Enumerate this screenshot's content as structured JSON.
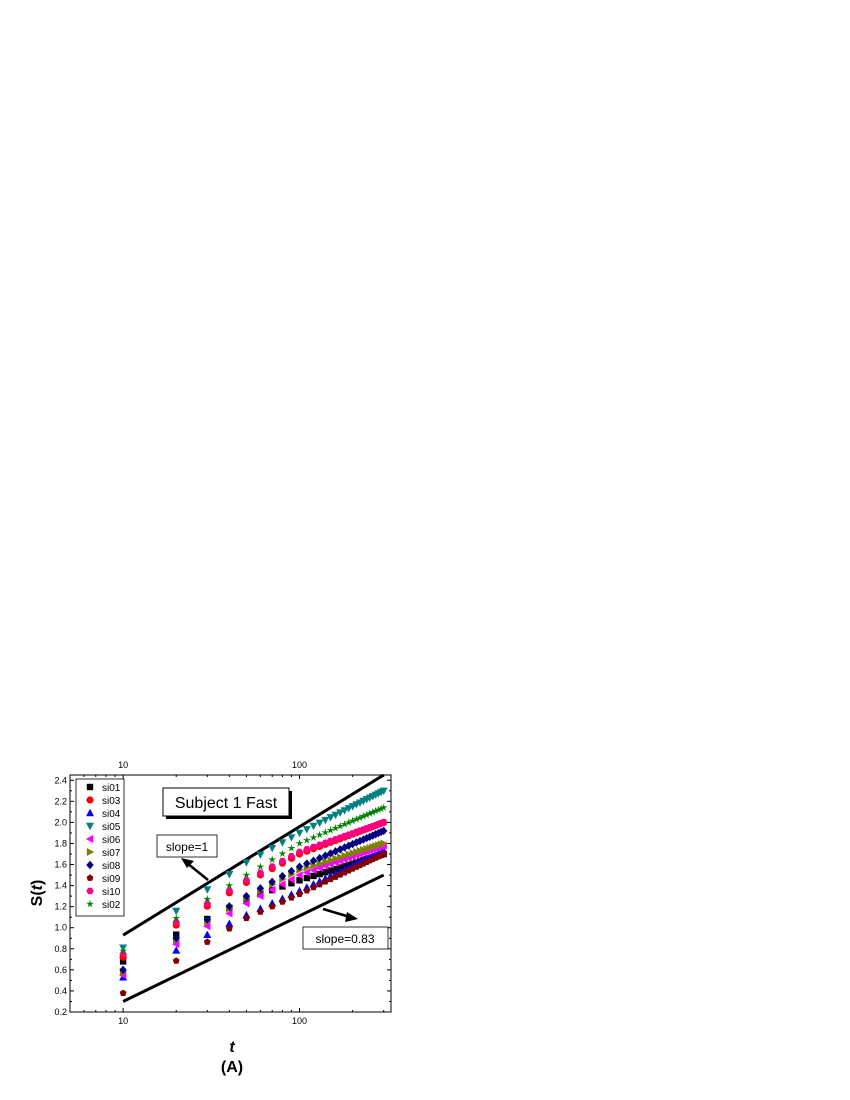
{
  "chart_data": {
    "type": "scatter",
    "title": "Subject 1 Fast",
    "xlabel": "t",
    "xlabel_sub": "(A)",
    "ylabel_prefix": "S(",
    "ylabel_var": "t",
    "ylabel_suffix": ")",
    "x_scale": "log",
    "xlim": [
      5,
      330
    ],
    "ylim": [
      0.2,
      2.45
    ],
    "x_ticks": [
      10,
      100
    ],
    "x_tick_labels": [
      "10",
      "100"
    ],
    "top_x_tick_labels": [
      "10",
      "100"
    ],
    "y_ticks": [
      0.2,
      0.4,
      0.6,
      0.8,
      1.0,
      1.2,
      1.4,
      1.6,
      1.8,
      2.0,
      2.2,
      2.4
    ],
    "y_tick_labels": [
      "0.2",
      "0.4",
      "0.6",
      "0.8",
      "1.0",
      "1.2",
      "1.4",
      "1.6",
      "1.8",
      "2.0",
      "2.2",
      "2.4"
    ],
    "legend_position": "top-left",
    "annotations": [
      {
        "text": "slope=1",
        "line_from": [
          10,
          0.93
        ],
        "line_to": [
          300,
          2.45
        ]
      },
      {
        "text": "slope=0.83",
        "line_from": [
          10,
          0.3
        ],
        "line_to": [
          300,
          1.5
        ]
      }
    ],
    "series": [
      {
        "name": "si01",
        "marker": "square",
        "color": "#000000",
        "anchors": [
          [
            10,
            0.68
          ],
          [
            50,
            1.27
          ],
          [
            100,
            1.45
          ],
          [
            300,
            1.7
          ]
        ]
      },
      {
        "name": "si03",
        "marker": "circle",
        "color": "#ff0000",
        "anchors": [
          [
            10,
            0.72
          ],
          [
            50,
            1.43
          ],
          [
            100,
            1.7
          ],
          [
            300,
            2.0
          ]
        ]
      },
      {
        "name": "si04",
        "marker": "triangle-up",
        "color": "#0000ff",
        "anchors": [
          [
            10,
            0.53
          ],
          [
            50,
            1.12
          ],
          [
            100,
            1.35
          ],
          [
            300,
            1.73
          ]
        ]
      },
      {
        "name": "si05",
        "marker": "triangle-down",
        "color": "#008080",
        "anchors": [
          [
            10,
            0.81
          ],
          [
            50,
            1.62
          ],
          [
            100,
            1.9
          ],
          [
            300,
            2.3
          ]
        ]
      },
      {
        "name": "si06",
        "marker": "triangle-left",
        "color": "#ff00ff",
        "anchors": [
          [
            10,
            0.55
          ],
          [
            50,
            1.23
          ],
          [
            100,
            1.5
          ],
          [
            300,
            1.78
          ]
        ]
      },
      {
        "name": "si07",
        "marker": "triangle-right",
        "color": "#808000",
        "anchors": [
          [
            10,
            0.58
          ],
          [
            50,
            1.28
          ],
          [
            100,
            1.55
          ],
          [
            300,
            1.8
          ]
        ]
      },
      {
        "name": "si08",
        "marker": "diamond",
        "color": "#000080",
        "anchors": [
          [
            10,
            0.6
          ],
          [
            50,
            1.3
          ],
          [
            100,
            1.58
          ],
          [
            300,
            1.92
          ]
        ]
      },
      {
        "name": "si09",
        "marker": "pentagon",
        "color": "#800000",
        "anchors": [
          [
            10,
            0.38
          ],
          [
            50,
            1.09
          ],
          [
            100,
            1.32
          ],
          [
            300,
            1.7
          ]
        ]
      },
      {
        "name": "si10",
        "marker": "hexagon",
        "color": "#ff0080",
        "anchors": [
          [
            10,
            0.75
          ],
          [
            50,
            1.45
          ],
          [
            100,
            1.72
          ],
          [
            300,
            2.0
          ]
        ]
      },
      {
        "name": "si02",
        "marker": "star",
        "color": "#008000",
        "anchors": [
          [
            10,
            0.78
          ],
          [
            50,
            1.5
          ],
          [
            100,
            1.8
          ],
          [
            300,
            2.14
          ]
        ]
      }
    ]
  }
}
